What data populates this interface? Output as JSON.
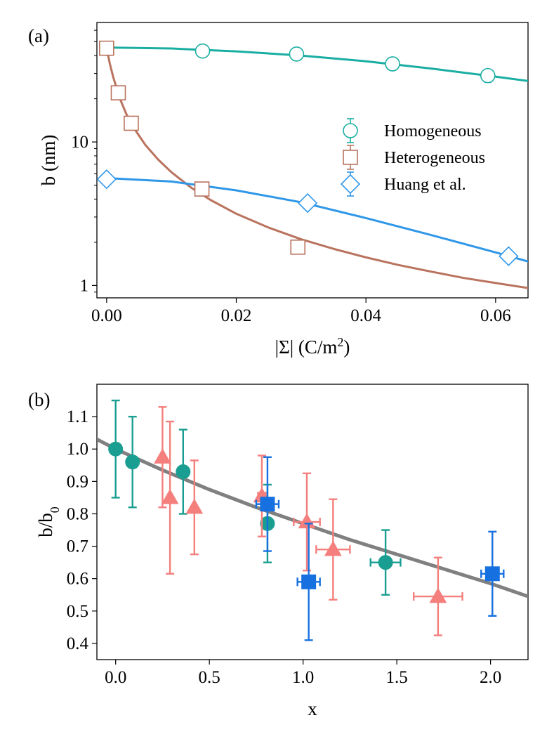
{
  "chart_data": [
    {
      "panel_label": "(a)",
      "type": "scatter",
      "xlabel": "|Σ| (C/m²)",
      "xlabel_parts": {
        "base": "|Σ| (C/m",
        "sup": "2",
        "tail": ")"
      },
      "ylabel": "b (nm)",
      "xscale": "linear",
      "yscale": "log",
      "xlim": [
        -0.0015,
        0.065
      ],
      "ylim": [
        0.82,
        68
      ],
      "xticks": [
        0.0,
        0.02,
        0.04,
        0.06
      ],
      "xtick_labels": [
        "0.00",
        "0.02",
        "0.04",
        "0.06"
      ],
      "yticks": [
        1,
        10
      ],
      "ytick_labels": [
        "1",
        "10"
      ],
      "grid": false,
      "legend_position": "right",
      "series": [
        {
          "name": "Homogeneous",
          "marker": "circle",
          "color": "#1aaea2",
          "x": [
            0.0,
            0.0148,
            0.0293,
            0.0441,
            0.0588
          ],
          "y": [
            45,
            43,
            41,
            35,
            29
          ],
          "y_err": [
            3,
            3,
            3,
            3,
            3
          ],
          "fit": {
            "x": [
              0.0,
              0.01,
              0.02,
              0.03,
              0.04,
              0.05,
              0.06,
              0.065
            ],
            "y": [
              45.5,
              44.8,
              42.8,
              40,
              36.5,
              32.5,
              28.5,
              26.6
            ]
          }
        },
        {
          "name": "Heterogeneous",
          "marker": "square",
          "color": "#b9735e",
          "x": [
            0.0,
            0.0018,
            0.0038,
            0.0147,
            0.0295
          ],
          "y": [
            45,
            22,
            13.5,
            4.7,
            1.85
          ],
          "y_err": [
            2,
            1.5,
            1,
            0.3,
            0.15
          ],
          "fit": {
            "x": [
              0.0,
              0.0005,
              0.001,
              0.002,
              0.003,
              0.004,
              0.006,
              0.008,
              0.01,
              0.013,
              0.016,
              0.02,
              0.025,
              0.03,
              0.035,
              0.04,
              0.045,
              0.05,
              0.055,
              0.06,
              0.065
            ],
            "y": [
              45,
              35,
              28.5,
              20.3,
              15.8,
              12.9,
              9.5,
              7.5,
              6.15,
              4.82,
              3.95,
              3.16,
              2.53,
              2.1,
              1.8,
              1.57,
              1.39,
              1.25,
              1.13,
              1.04,
              0.96
            ]
          }
        },
        {
          "name": "Huang et al.",
          "marker": "diamond",
          "color": "#2f97e8",
          "x": [
            0.0,
            0.031,
            0.062
          ],
          "y": [
            5.5,
            3.75,
            1.6
          ],
          "y_err": [
            0.2,
            0.15,
            0.08
          ],
          "fit": {
            "x": [
              0.0,
              0.01,
              0.02,
              0.03,
              0.04,
              0.05,
              0.06,
              0.065
            ],
            "y": [
              5.6,
              5.3,
              4.6,
              3.8,
              2.95,
              2.25,
              1.7,
              1.47
            ]
          }
        }
      ]
    },
    {
      "panel_label": "(b)",
      "type": "scatter",
      "xlabel": "x",
      "ylabel": "b/b₀",
      "ylabel_parts": {
        "base": "b/b",
        "sub": "0"
      },
      "xscale": "linear",
      "yscale": "linear",
      "xlim": [
        -0.1,
        2.2
      ],
      "ylim": [
        0.35,
        1.2
      ],
      "xticks": [
        0.0,
        0.5,
        1.0,
        1.5,
        2.0
      ],
      "xtick_labels": [
        "0.0",
        "0.5",
        "1.0",
        "1.5",
        "2.0"
      ],
      "yticks": [
        0.4,
        0.5,
        0.6,
        0.7,
        0.8,
        0.9,
        1.0,
        1.1
      ],
      "ytick_labels": [
        "0.4",
        "0.5",
        "0.6",
        "0.7",
        "0.8",
        "0.9",
        "1.0",
        "1.1"
      ],
      "grid": false,
      "fit": {
        "color": "#808080",
        "x": [
          -0.1,
          0.0,
          0.25,
          0.5,
          0.75,
          1.0,
          1.25,
          1.5,
          1.75,
          2.0,
          2.2
        ],
        "y": [
          1.03,
          1.0,
          0.935,
          0.875,
          0.82,
          0.77,
          0.72,
          0.675,
          0.63,
          0.585,
          0.545
        ]
      },
      "series": [
        {
          "marker": "circle",
          "color": "#1a9e92",
          "x": [
            0.0,
            0.09,
            0.36,
            0.81,
            1.44
          ],
          "y": [
            1.0,
            0.96,
            0.93,
            0.77,
            0.65
          ],
          "y_err": [
            0.15,
            0.14,
            0.13,
            0.12,
            0.1
          ],
          "x_err": [
            0,
            0,
            0,
            0.02,
            0.08
          ]
        },
        {
          "marker": "triangle",
          "color": "#f47f7c",
          "x": [
            0.25,
            0.29,
            0.42,
            0.78,
            1.02,
            1.16,
            1.72
          ],
          "y": [
            0.975,
            0.85,
            0.82,
            0.855,
            0.775,
            0.69,
            0.545
          ],
          "y_err": [
            0.155,
            0.235,
            0.145,
            0.125,
            0.15,
            0.155,
            0.12
          ],
          "x_err": [
            0.01,
            0.01,
            0.01,
            0.02,
            0.07,
            0.09,
            0.13
          ]
        },
        {
          "marker": "square",
          "color": "#1670e0",
          "x": [
            0.81,
            1.03,
            2.01
          ],
          "y": [
            0.83,
            0.59,
            0.615
          ],
          "y_err": [
            0.145,
            0.18,
            0.13
          ],
          "x_err": [
            0.06,
            0.06,
            0.06
          ]
        }
      ]
    }
  ]
}
